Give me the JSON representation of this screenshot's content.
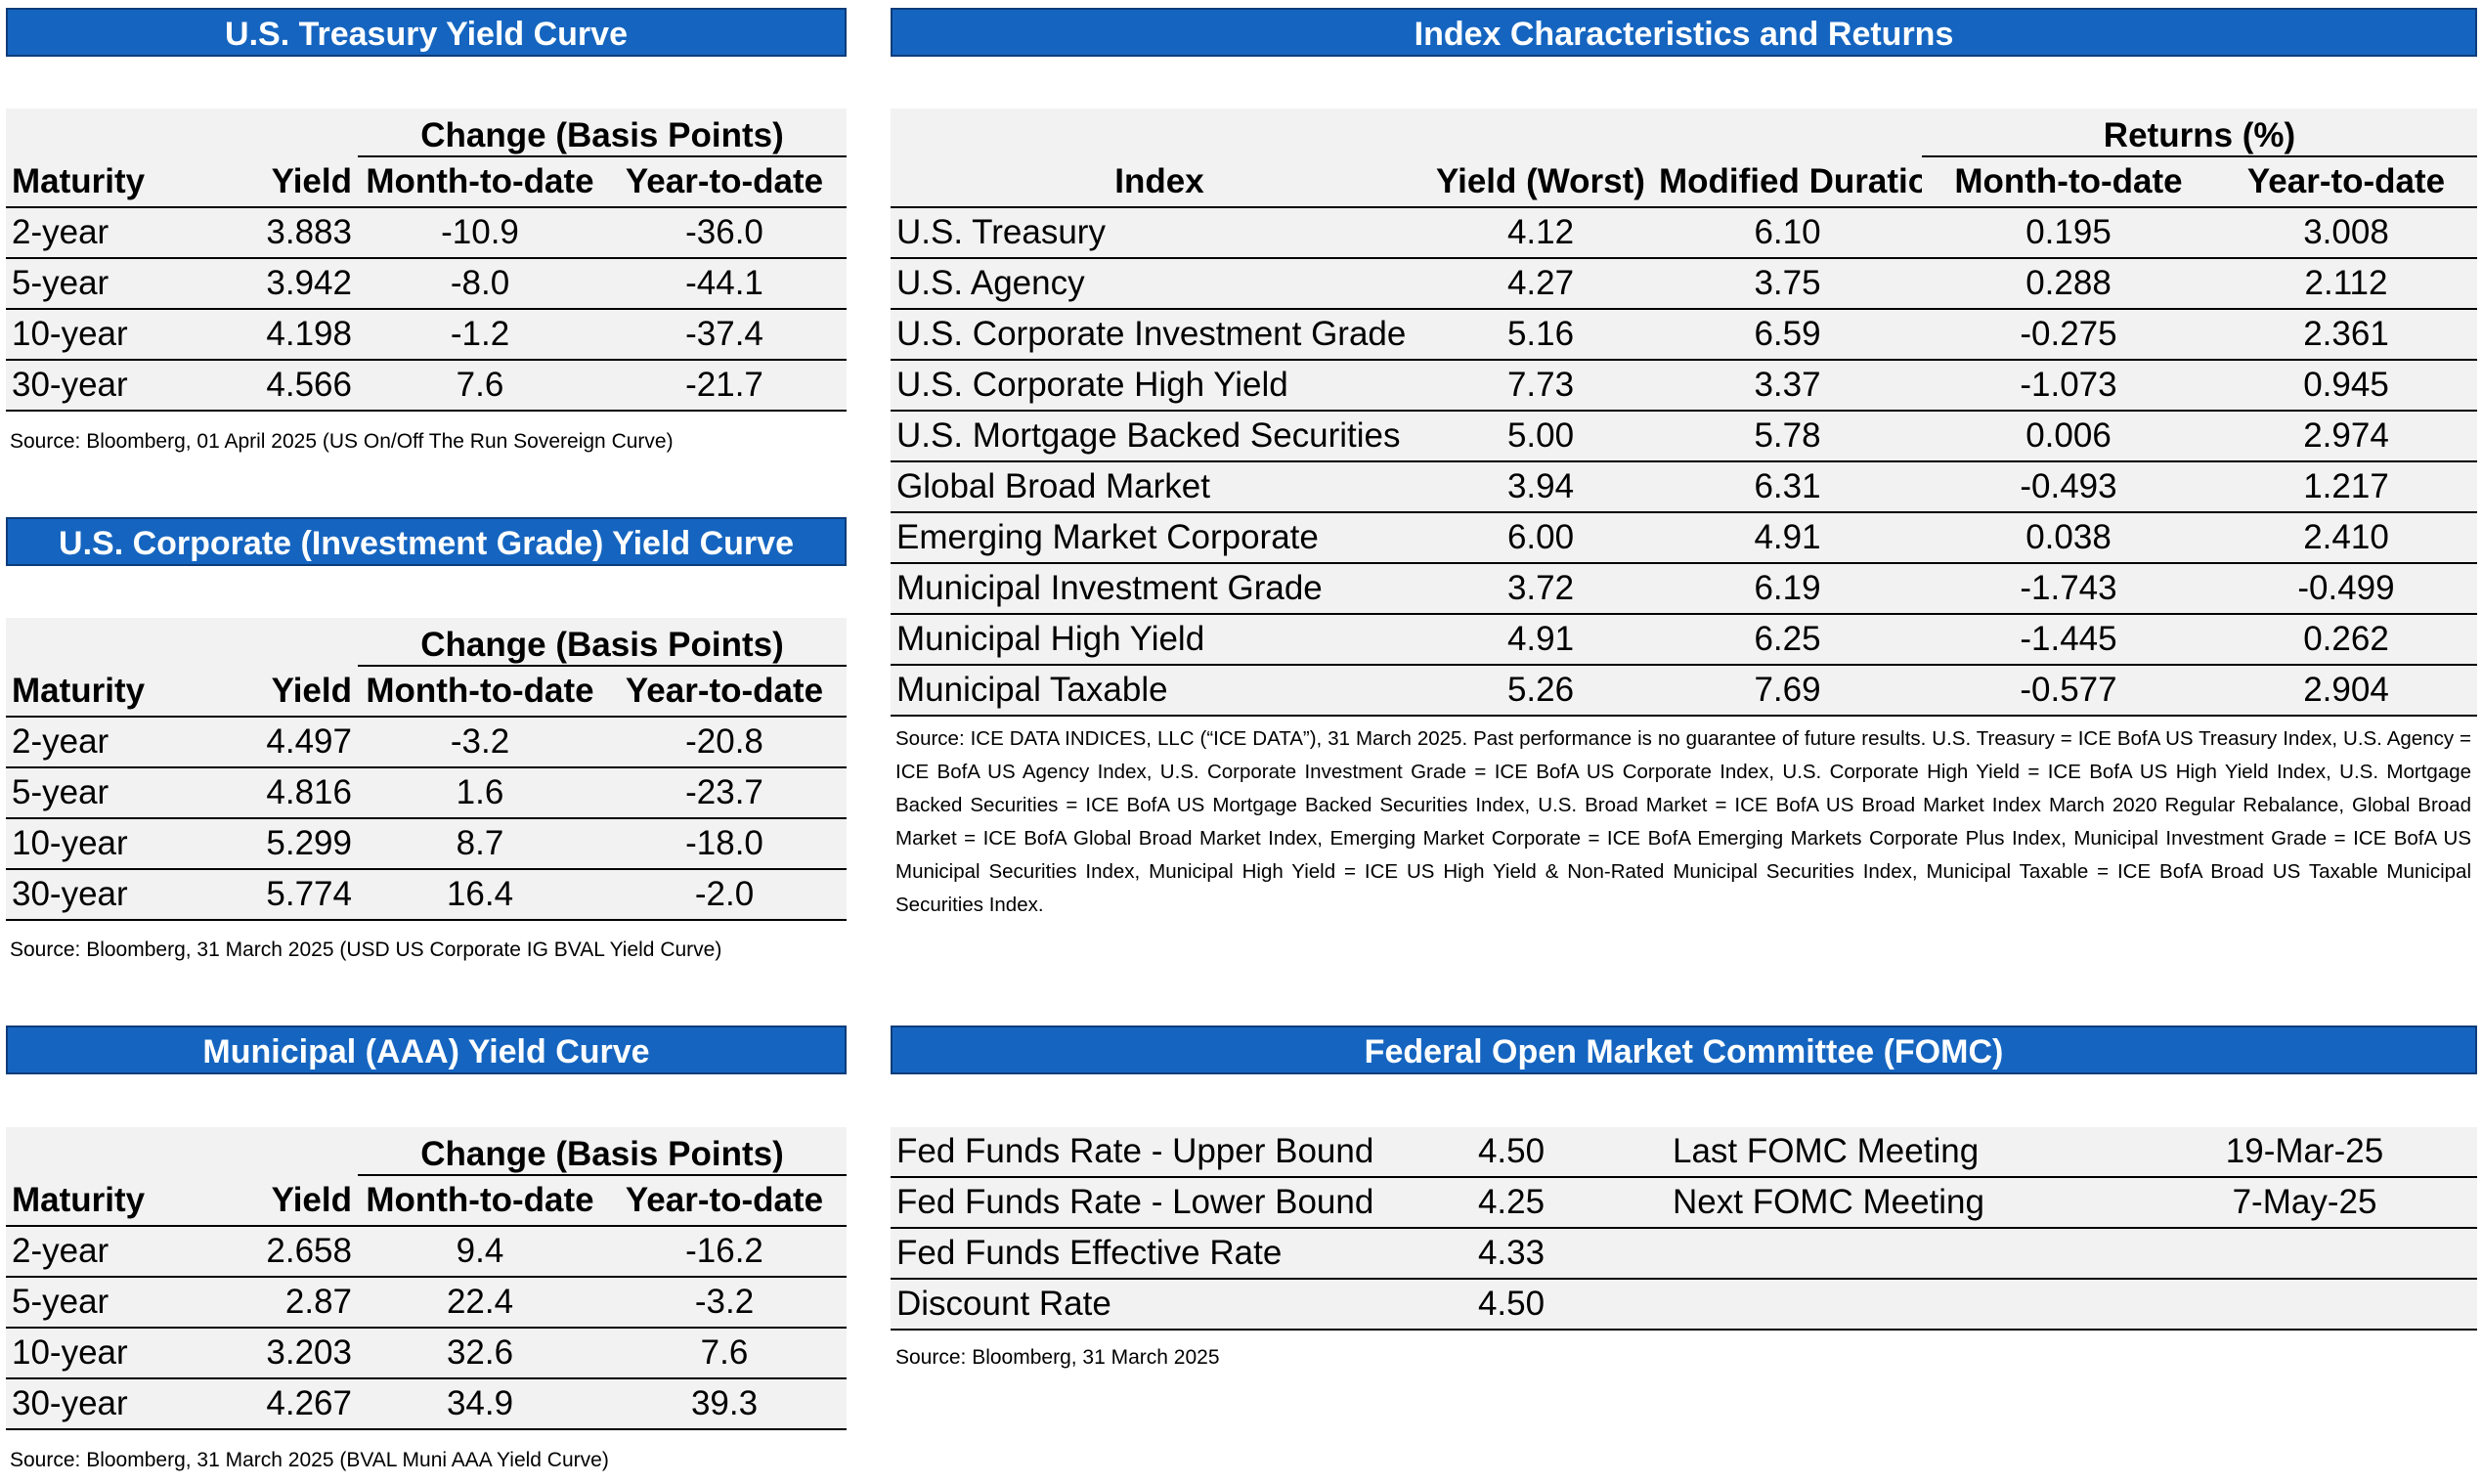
{
  "treasury": {
    "title": "U.S. Treasury Yield Curve",
    "group_header": "Change (Basis Points)",
    "columns": [
      "Maturity",
      "Yield",
      "Month-to-date",
      "Year-to-date"
    ],
    "rows": [
      [
        "2-year",
        "3.883",
        "-10.9",
        "-36.0"
      ],
      [
        "5-year",
        "3.942",
        "-8.0",
        "-44.1"
      ],
      [
        "10-year",
        "4.198",
        "-1.2",
        "-37.4"
      ],
      [
        "30-year",
        "4.566",
        "7.6",
        "-21.7"
      ]
    ],
    "source": "Source: Bloomberg, 01 April 2025 (US On/Off The Run Sovereign Curve)"
  },
  "corporate": {
    "title": "U.S. Corporate (Investment Grade) Yield Curve",
    "group_header": "Change (Basis Points)",
    "columns": [
      "Maturity",
      "Yield",
      "Month-to-date",
      "Year-to-date"
    ],
    "rows": [
      [
        "2-year",
        "4.497",
        "-3.2",
        "-20.8"
      ],
      [
        "5-year",
        "4.816",
        "1.6",
        "-23.7"
      ],
      [
        "10-year",
        "5.299",
        "8.7",
        "-18.0"
      ],
      [
        "30-year",
        "5.774",
        "16.4",
        "-2.0"
      ]
    ],
    "source": "Source: Bloomberg, 31 March 2025 (USD US Corporate IG BVAL Yield Curve)"
  },
  "municipal": {
    "title": "Municipal (AAA) Yield Curve",
    "group_header": "Change (Basis Points)",
    "columns": [
      "Maturity",
      "Yield",
      "Month-to-date",
      "Year-to-date"
    ],
    "rows": [
      [
        "2-year",
        "2.658",
        "9.4",
        "-16.2"
      ],
      [
        "5-year",
        "2.87",
        "22.4",
        "-3.2"
      ],
      [
        "10-year",
        "3.203",
        "32.6",
        "7.6"
      ],
      [
        "30-year",
        "4.267",
        "34.9",
        "39.3"
      ]
    ],
    "source": "Source: Bloomberg, 31 March 2025 (BVAL Muni AAA Yield Curve)"
  },
  "index": {
    "title": "Index Characteristics and Returns",
    "group_header": "Returns (%)",
    "columns": [
      "Index",
      "Yield (Worst)",
      "Modified Duration",
      "Month-to-date",
      "Year-to-date"
    ],
    "rows": [
      [
        "U.S. Treasury",
        "4.12",
        "6.10",
        "0.195",
        "3.008"
      ],
      [
        "U.S. Agency",
        "4.27",
        "3.75",
        "0.288",
        "2.112"
      ],
      [
        "U.S. Corporate Investment Grade",
        "5.16",
        "6.59",
        "-0.275",
        "2.361"
      ],
      [
        "U.S. Corporate High Yield",
        "7.73",
        "3.37",
        "-1.073",
        "0.945"
      ],
      [
        "U.S. Mortgage Backed Securities",
        "5.00",
        "5.78",
        "0.006",
        "2.974"
      ],
      [
        "Global Broad Market",
        "3.94",
        "6.31",
        "-0.493",
        "1.217"
      ],
      [
        "Emerging Market Corporate",
        "6.00",
        "4.91",
        "0.038",
        "2.410"
      ],
      [
        "Municipal Investment Grade",
        "3.72",
        "6.19",
        "-1.743",
        "-0.499"
      ],
      [
        "Municipal High Yield",
        "4.91",
        "6.25",
        "-1.445",
        "0.262"
      ],
      [
        "Municipal Taxable",
        "5.26",
        "7.69",
        "-0.577",
        "2.904"
      ]
    ],
    "source": "Source: ICE DATA INDICES, LLC (“ICE DATA”), 31 March 2025.  Past performance is no guarantee of future results. U.S. Treasury  = ICE BofA US Treasury Index, U.S. Agency = ICE BofA US Agency Index, U.S. Corporate Investment Grade = ICE BofA US Corporate Index, U.S. Corporate High Yield = ICE BofA US High Yield Index, U.S. Mortgage Backed Securities = ICE BofA US Mortgage Backed Securities Index, U.S. Broad Market = ICE BofA US Broad Market Index March 2020 Regular Rebalance, Global Broad Market = ICE BofA Global Broad Market Index, Emerging Market Corporate = ICE BofA Emerging Markets Corporate Plus Index, Municipal Investment Grade = ICE BofA US Municipal Securities Index, Municipal High Yield = ICE US High Yield & Non-Rated Municipal Securities Index, Municipal Taxable = ICE BofA Broad US Taxable Municipal Securities Index."
  },
  "fomc": {
    "title": "Federal Open Market Committee (FOMC)",
    "rows": [
      [
        "Fed Funds Rate - Upper Bound",
        "4.50",
        "Last FOMC Meeting",
        "19-Mar-25"
      ],
      [
        "Fed Funds Rate - Lower Bound",
        "4.25",
        "Next FOMC Meeting",
        "7-May-25"
      ],
      [
        "Fed Funds Effective Rate",
        "4.33",
        "",
        ""
      ],
      [
        "Discount Rate",
        "4.50",
        "",
        ""
      ]
    ],
    "source": "Source: Bloomberg, 31 March 2025"
  },
  "colors": {
    "header_bg": "#1565c0",
    "header_text": "#ffffff",
    "table_bg": "#f2f2f2"
  }
}
